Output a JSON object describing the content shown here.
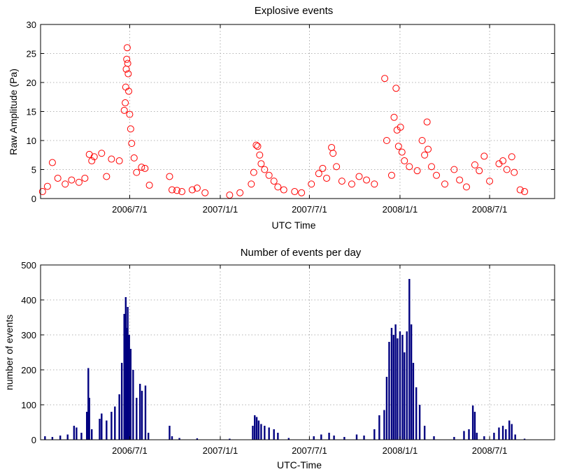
{
  "chart_data": [
    {
      "type": "scatter",
      "title": "Explosive events",
      "xlabel": "UTC Time",
      "ylabel": "Raw Amplitude (Pa)",
      "xlim": [
        "2006-01-01",
        "2008-11-10"
      ],
      "ylim": [
        0,
        30
      ],
      "yticks": [
        0,
        5,
        10,
        15,
        20,
        25,
        30
      ],
      "xticks": [
        {
          "date": "2006-07-01",
          "label": "2006/7/1"
        },
        {
          "date": "2007-01-01",
          "label": "2007/1/1"
        },
        {
          "date": "2007-07-01",
          "label": "2007/7/1"
        },
        {
          "date": "2008-01-01",
          "label": "2008/1/1"
        },
        {
          "date": "2008-07-01",
          "label": "2008/7/1"
        }
      ],
      "grid": true,
      "marker_color": "#ff0000",
      "marker": "open-circle",
      "points": [
        {
          "x": "2006-01-05",
          "y": 1.2
        },
        {
          "x": "2006-01-15",
          "y": 2.1
        },
        {
          "x": "2006-01-25",
          "y": 6.2
        },
        {
          "x": "2006-02-05",
          "y": 3.5
        },
        {
          "x": "2006-02-20",
          "y": 2.5
        },
        {
          "x": "2006-03-05",
          "y": 3.2
        },
        {
          "x": "2006-03-20",
          "y": 2.8
        },
        {
          "x": "2006-04-01",
          "y": 3.5
        },
        {
          "x": "2006-04-10",
          "y": 7.6
        },
        {
          "x": "2006-04-15",
          "y": 6.5
        },
        {
          "x": "2006-04-20",
          "y": 7.2
        },
        {
          "x": "2006-05-05",
          "y": 7.8
        },
        {
          "x": "2006-05-15",
          "y": 3.8
        },
        {
          "x": "2006-05-25",
          "y": 6.8
        },
        {
          "x": "2006-06-10",
          "y": 6.5
        },
        {
          "x": "2006-06-20",
          "y": 15.2
        },
        {
          "x": "2006-06-22",
          "y": 16.5
        },
        {
          "x": "2006-06-23",
          "y": 19.2
        },
        {
          "x": "2006-06-24",
          "y": 22.3
        },
        {
          "x": "2006-06-25",
          "y": 24.0
        },
        {
          "x": "2006-06-26",
          "y": 26.0
        },
        {
          "x": "2006-06-27",
          "y": 23.3
        },
        {
          "x": "2006-06-28",
          "y": 21.5
        },
        {
          "x": "2006-06-29",
          "y": 18.5
        },
        {
          "x": "2006-07-01",
          "y": 14.5
        },
        {
          "x": "2006-07-03",
          "y": 12.0
        },
        {
          "x": "2006-07-05",
          "y": 9.5
        },
        {
          "x": "2006-07-10",
          "y": 7.0
        },
        {
          "x": "2006-07-15",
          "y": 4.5
        },
        {
          "x": "2006-07-25",
          "y": 5.4
        },
        {
          "x": "2006-08-01",
          "y": 5.2
        },
        {
          "x": "2006-08-10",
          "y": 2.3
        },
        {
          "x": "2006-09-20",
          "y": 3.8
        },
        {
          "x": "2006-09-25",
          "y": 1.5
        },
        {
          "x": "2006-10-05",
          "y": 1.4
        },
        {
          "x": "2006-10-15",
          "y": 1.2
        },
        {
          "x": "2006-11-05",
          "y": 1.5
        },
        {
          "x": "2006-11-15",
          "y": 1.8
        },
        {
          "x": "2006-12-01",
          "y": 1.0
        },
        {
          "x": "2007-01-20",
          "y": 0.6
        },
        {
          "x": "2007-02-10",
          "y": 1.0
        },
        {
          "x": "2007-03-05",
          "y": 2.5
        },
        {
          "x": "2007-03-10",
          "y": 4.5
        },
        {
          "x": "2007-03-15",
          "y": 9.2
        },
        {
          "x": "2007-03-18",
          "y": 9.0
        },
        {
          "x": "2007-03-22",
          "y": 7.5
        },
        {
          "x": "2007-03-25",
          "y": 6.0
        },
        {
          "x": "2007-04-01",
          "y": 5.0
        },
        {
          "x": "2007-04-10",
          "y": 4.0
        },
        {
          "x": "2007-04-20",
          "y": 3.0
        },
        {
          "x": "2007-04-28",
          "y": 2.0
        },
        {
          "x": "2007-05-10",
          "y": 1.5
        },
        {
          "x": "2007-06-01",
          "y": 1.2
        },
        {
          "x": "2007-06-15",
          "y": 1.0
        },
        {
          "x": "2007-07-05",
          "y": 2.5
        },
        {
          "x": "2007-07-20",
          "y": 4.3
        },
        {
          "x": "2007-07-28",
          "y": 5.2
        },
        {
          "x": "2007-08-05",
          "y": 3.5
        },
        {
          "x": "2007-08-15",
          "y": 8.8
        },
        {
          "x": "2007-08-18",
          "y": 7.8
        },
        {
          "x": "2007-08-25",
          "y": 5.5
        },
        {
          "x": "2007-09-05",
          "y": 3.0
        },
        {
          "x": "2007-09-25",
          "y": 2.5
        },
        {
          "x": "2007-10-10",
          "y": 3.8
        },
        {
          "x": "2007-10-25",
          "y": 3.2
        },
        {
          "x": "2007-11-10",
          "y": 2.5
        },
        {
          "x": "2007-12-01",
          "y": 20.7
        },
        {
          "x": "2007-12-05",
          "y": 10.0
        },
        {
          "x": "2007-12-15",
          "y": 4.0
        },
        {
          "x": "2007-12-20",
          "y": 14.0
        },
        {
          "x": "2007-12-24",
          "y": 19.0
        },
        {
          "x": "2007-12-26",
          "y": 11.8
        },
        {
          "x": "2007-12-29",
          "y": 9.0
        },
        {
          "x": "2008-01-02",
          "y": 12.3
        },
        {
          "x": "2008-01-05",
          "y": 8.0
        },
        {
          "x": "2008-01-10",
          "y": 6.5
        },
        {
          "x": "2008-01-20",
          "y": 5.5
        },
        {
          "x": "2008-02-05",
          "y": 4.8
        },
        {
          "x": "2008-02-15",
          "y": 10.0
        },
        {
          "x": "2008-02-20",
          "y": 7.5
        },
        {
          "x": "2008-02-25",
          "y": 13.2
        },
        {
          "x": "2008-02-27",
          "y": 8.5
        },
        {
          "x": "2008-03-05",
          "y": 5.5
        },
        {
          "x": "2008-03-15",
          "y": 4.0
        },
        {
          "x": "2008-04-01",
          "y": 2.5
        },
        {
          "x": "2008-04-20",
          "y": 5.0
        },
        {
          "x": "2008-05-01",
          "y": 3.2
        },
        {
          "x": "2008-05-15",
          "y": 2.0
        },
        {
          "x": "2008-06-01",
          "y": 5.8
        },
        {
          "x": "2008-06-10",
          "y": 4.8
        },
        {
          "x": "2008-06-20",
          "y": 7.3
        },
        {
          "x": "2008-07-01",
          "y": 3.0
        },
        {
          "x": "2008-07-20",
          "y": 6.0
        },
        {
          "x": "2008-07-28",
          "y": 6.5
        },
        {
          "x": "2008-08-05",
          "y": 5.0
        },
        {
          "x": "2008-08-15",
          "y": 7.2
        },
        {
          "x": "2008-08-20",
          "y": 4.5
        },
        {
          "x": "2008-09-01",
          "y": 1.5
        },
        {
          "x": "2008-09-10",
          "y": 1.2
        }
      ]
    },
    {
      "type": "bar",
      "title": "Number of events per day",
      "xlabel": "UTC-Time",
      "ylabel": "number of events",
      "xlim": [
        "2006-01-01",
        "2008-11-10"
      ],
      "ylim": [
        0,
        500
      ],
      "yticks": [
        0,
        100,
        200,
        300,
        400,
        500
      ],
      "xticks": [
        {
          "date": "2006-07-01",
          "label": "2006/7/1"
        },
        {
          "date": "2007-01-01",
          "label": "2007/1/1"
        },
        {
          "date": "2007-07-01",
          "label": "2007/7/1"
        },
        {
          "date": "2008-01-01",
          "label": "2008/1/1"
        },
        {
          "date": "2008-07-01",
          "label": "2008/7/1"
        }
      ],
      "grid": true,
      "bar_color": "#000080",
      "points": [
        {
          "x": "2006-01-10",
          "y": 10
        },
        {
          "x": "2006-01-25",
          "y": 8
        },
        {
          "x": "2006-02-10",
          "y": 12
        },
        {
          "x": "2006-02-25",
          "y": 15
        },
        {
          "x": "2006-03-10",
          "y": 40
        },
        {
          "x": "2006-03-15",
          "y": 35
        },
        {
          "x": "2006-03-25",
          "y": 20
        },
        {
          "x": "2006-04-05",
          "y": 80
        },
        {
          "x": "2006-04-08",
          "y": 205
        },
        {
          "x": "2006-04-10",
          "y": 120
        },
        {
          "x": "2006-04-15",
          "y": 30
        },
        {
          "x": "2006-05-01",
          "y": 60
        },
        {
          "x": "2006-05-05",
          "y": 75
        },
        {
          "x": "2006-05-15",
          "y": 55
        },
        {
          "x": "2006-05-25",
          "y": 80
        },
        {
          "x": "2006-06-01",
          "y": 95
        },
        {
          "x": "2006-06-10",
          "y": 130
        },
        {
          "x": "2006-06-15",
          "y": 220
        },
        {
          "x": "2006-06-20",
          "y": 360
        },
        {
          "x": "2006-06-23",
          "y": 408
        },
        {
          "x": "2006-06-25",
          "y": 320
        },
        {
          "x": "2006-06-27",
          "y": 380
        },
        {
          "x": "2006-06-30",
          "y": 300
        },
        {
          "x": "2006-07-03",
          "y": 260
        },
        {
          "x": "2006-07-08",
          "y": 200
        },
        {
          "x": "2006-07-15",
          "y": 120
        },
        {
          "x": "2006-07-22",
          "y": 160
        },
        {
          "x": "2006-07-26",
          "y": 140
        },
        {
          "x": "2006-08-02",
          "y": 155
        },
        {
          "x": "2006-08-08",
          "y": 20
        },
        {
          "x": "2006-09-20",
          "y": 40
        },
        {
          "x": "2006-09-25",
          "y": 10
        },
        {
          "x": "2006-10-10",
          "y": 5
        },
        {
          "x": "2006-11-15",
          "y": 4
        },
        {
          "x": "2007-01-20",
          "y": 3
        },
        {
          "x": "2007-03-08",
          "y": 40
        },
        {
          "x": "2007-03-12",
          "y": 70
        },
        {
          "x": "2007-03-16",
          "y": 65
        },
        {
          "x": "2007-03-20",
          "y": 55
        },
        {
          "x": "2007-03-25",
          "y": 45
        },
        {
          "x": "2007-04-01",
          "y": 40
        },
        {
          "x": "2007-04-10",
          "y": 35
        },
        {
          "x": "2007-04-20",
          "y": 30
        },
        {
          "x": "2007-04-28",
          "y": 20
        },
        {
          "x": "2007-05-20",
          "y": 5
        },
        {
          "x": "2007-07-10",
          "y": 10
        },
        {
          "x": "2007-07-25",
          "y": 15
        },
        {
          "x": "2007-08-10",
          "y": 20
        },
        {
          "x": "2007-08-20",
          "y": 12
        },
        {
          "x": "2007-09-10",
          "y": 8
        },
        {
          "x": "2007-10-05",
          "y": 15
        },
        {
          "x": "2007-10-20",
          "y": 12
        },
        {
          "x": "2007-11-10",
          "y": 30
        },
        {
          "x": "2007-11-20",
          "y": 70
        },
        {
          "x": "2007-11-30",
          "y": 85
        },
        {
          "x": "2007-12-05",
          "y": 180
        },
        {
          "x": "2007-12-10",
          "y": 280
        },
        {
          "x": "2007-12-15",
          "y": 320
        },
        {
          "x": "2007-12-19",
          "y": 300
        },
        {
          "x": "2007-12-23",
          "y": 330
        },
        {
          "x": "2007-12-27",
          "y": 290
        },
        {
          "x": "2008-01-01",
          "y": 310
        },
        {
          "x": "2008-01-06",
          "y": 300
        },
        {
          "x": "2008-01-10",
          "y": 250
        },
        {
          "x": "2008-01-15",
          "y": 310
        },
        {
          "x": "2008-01-20",
          "y": 460
        },
        {
          "x": "2008-01-24",
          "y": 330
        },
        {
          "x": "2008-01-28",
          "y": 220
        },
        {
          "x": "2008-02-03",
          "y": 150
        },
        {
          "x": "2008-02-10",
          "y": 100
        },
        {
          "x": "2008-02-20",
          "y": 40
        },
        {
          "x": "2008-03-10",
          "y": 10
        },
        {
          "x": "2008-04-20",
          "y": 8
        },
        {
          "x": "2008-05-10",
          "y": 25
        },
        {
          "x": "2008-05-20",
          "y": 30
        },
        {
          "x": "2008-05-28",
          "y": 98
        },
        {
          "x": "2008-06-01",
          "y": 80
        },
        {
          "x": "2008-06-05",
          "y": 20
        },
        {
          "x": "2008-06-20",
          "y": 10
        },
        {
          "x": "2008-07-10",
          "y": 20
        },
        {
          "x": "2008-07-20",
          "y": 35
        },
        {
          "x": "2008-07-28",
          "y": 40
        },
        {
          "x": "2008-08-03",
          "y": 30
        },
        {
          "x": "2008-08-10",
          "y": 55
        },
        {
          "x": "2008-08-15",
          "y": 45
        },
        {
          "x": "2008-08-22",
          "y": 15
        },
        {
          "x": "2008-09-10",
          "y": 3
        }
      ]
    }
  ]
}
